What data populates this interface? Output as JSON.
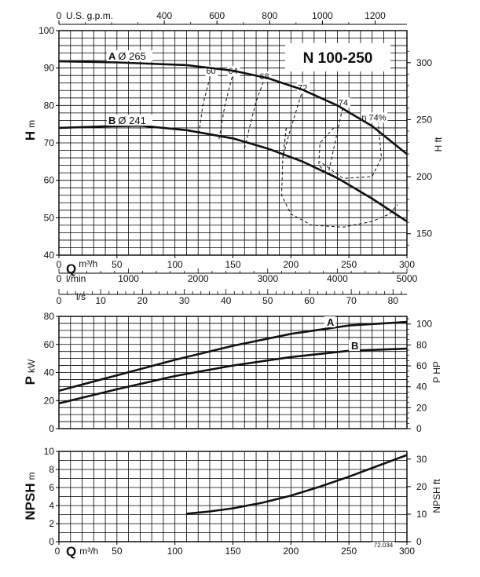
{
  "chart_data": [
    {
      "type": "line",
      "panel": "head",
      "title": "N 100-250",
      "ylabel_main": "H",
      "ylabel_unit": "m",
      "yrlabel": "H ft",
      "ylim": [
        40,
        100
      ],
      "yticks": [
        40,
        50,
        60,
        70,
        80,
        90,
        100
      ],
      "yrticks": [
        150,
        200,
        250,
        300
      ],
      "ft_per_m": 3.28084,
      "xlim": [
        0,
        300
      ],
      "top_axis": {
        "label": "U.S. g.p.m.",
        "ticks": [
          0,
          400,
          600,
          800,
          1000,
          1200
        ],
        "gpm_per_m3h": 4.4029
      },
      "series": [
        {
          "name": "A",
          "label_letter": "A",
          "label_text": "Ø 265",
          "x": [
            0,
            50,
            110,
            150,
            180,
            210,
            240,
            270,
            300
          ],
          "y": [
            91.8,
            91.5,
            90.8,
            89.3,
            87.3,
            84.2,
            80.0,
            74.5,
            67.0
          ]
        },
        {
          "name": "B",
          "label_letter": "B",
          "label_text": "Ø 241",
          "x": [
            0,
            40,
            70,
            110,
            150,
            180,
            210,
            240,
            270,
            300
          ],
          "y": [
            74.0,
            74.4,
            74.6,
            73.4,
            71.2,
            68.5,
            65.0,
            60.6,
            55.1,
            49.0
          ]
        }
      ],
      "efficiency_contours": [
        {
          "label": "60",
          "x": [
            120,
            124,
            131
          ],
          "y": [
            71,
            80,
            88.5
          ]
        },
        {
          "label": "64",
          "x": [
            138,
            143,
            150
          ],
          "y": [
            71,
            80,
            88.5
          ]
        },
        {
          "label": "68",
          "x": [
            160,
            165,
            170,
            177
          ],
          "y": [
            68.5,
            75,
            81,
            87
          ]
        },
        {
          "label": "72",
          "x": [
            196,
            193,
            198,
            210
          ],
          "y": [
            74,
            66,
            72,
            84
          ]
        },
        {
          "label": "74",
          "x": [
            237,
            225,
            224,
            232,
            245
          ],
          "y": [
            74,
            70,
            64,
            61.5,
            80
          ]
        },
        {
          "label": "η 74%",
          "x": [
            275,
            278,
            270,
            245,
            225
          ],
          "y": [
            76,
            66,
            61,
            60.5,
            65
          ]
        }
      ],
      "loop_72": {
        "x": [
          196,
          193,
          192,
          200,
          218,
          245,
          270,
          285,
          292
        ],
        "y": [
          74,
          66,
          56,
          51,
          48,
          47.5,
          49,
          51,
          53.5
        ]
      }
    },
    {
      "type": "axis",
      "panel": "flow-scales",
      "q_m3h": {
        "label": "Q",
        "unit": "m³/h",
        "ticks": [
          0,
          50,
          100,
          150,
          200,
          250,
          300
        ]
      },
      "q_lmin": {
        "unit": "l/min",
        "ticks": [
          0,
          1000,
          2000,
          3000,
          4000,
          5000
        ]
      },
      "q_ls": {
        "unit": "l/s",
        "ticks": [
          0,
          10,
          20,
          30,
          40,
          50,
          60,
          70,
          80
        ]
      }
    },
    {
      "type": "line",
      "panel": "power",
      "ylabel_main": "P",
      "ylabel_unit": "kW",
      "yrlabel": "P HP",
      "ylim": [
        0,
        80
      ],
      "yticks": [
        0,
        20,
        40,
        60,
        80
      ],
      "yrticks": [
        0,
        20,
        40,
        60,
        80,
        100
      ],
      "hp_per_kw": 1.341,
      "xlim": [
        0,
        300
      ],
      "series": [
        {
          "name": "A",
          "label_letter": "A",
          "x": [
            0,
            50,
            100,
            150,
            200,
            250,
            300
          ],
          "y": [
            27.0,
            38.0,
            49.0,
            59.0,
            67.5,
            73.5,
            76.0
          ]
        },
        {
          "name": "B",
          "label_letter": "B",
          "x": [
            0,
            50,
            100,
            150,
            200,
            250,
            300
          ],
          "y": [
            18.0,
            28.0,
            37.5,
            45.0,
            51.0,
            55.5,
            57.0
          ]
        }
      ]
    },
    {
      "type": "line",
      "panel": "npsh",
      "ylabel_main": "NPSH",
      "ylabel_unit": "m",
      "yrlabel": "NPSH ft",
      "ylim": [
        0,
        10
      ],
      "yticks": [
        0,
        2,
        4,
        6,
        8,
        10
      ],
      "yrticks": [
        0,
        10,
        20,
        30
      ],
      "ft_per_m": 3.28084,
      "xlim": [
        0,
        300
      ],
      "xlabel": "Q",
      "xunit": "m³/h",
      "xticks": [
        0,
        50,
        100,
        150,
        200,
        250,
        300
      ],
      "code": "72.034",
      "series": [
        {
          "name": "NPSH",
          "x": [
            110,
            130,
            150,
            175,
            200,
            225,
            250,
            275,
            300
          ],
          "y": [
            3.1,
            3.35,
            3.7,
            4.3,
            5.1,
            6.1,
            7.2,
            8.4,
            9.6
          ]
        }
      ]
    }
  ]
}
